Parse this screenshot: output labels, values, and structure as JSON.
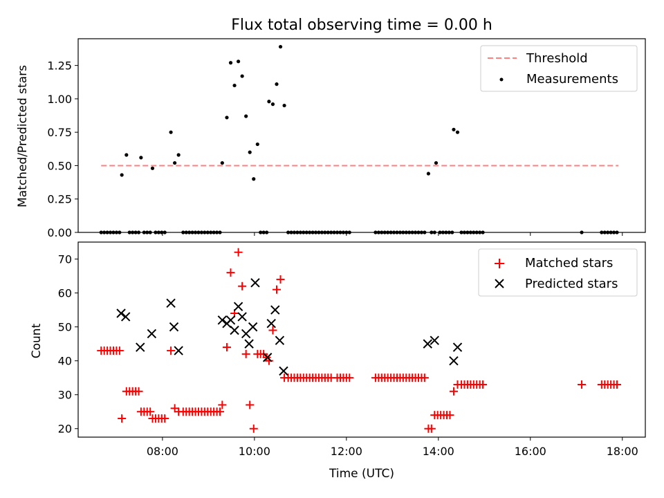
{
  "figure": {
    "title": "Flux total observing time = 0.00 h"
  },
  "chart_data": [
    {
      "type": "scatter",
      "title": "Flux total observing time = 0.00 h",
      "xlabel": "",
      "ylabel": "Matched/Predicted stars",
      "xlim": [
        "06:10",
        "18:30"
      ],
      "ylim": [
        0,
        1.45
      ],
      "xticks": [
        "08:00",
        "10:00",
        "12:00",
        "14:00",
        "16:00",
        "18:00"
      ],
      "yticks": [
        "0.00",
        "0.25",
        "0.50",
        "0.75",
        "1.00",
        "1.25"
      ],
      "legend_position": "top-right",
      "threshold": {
        "name": "Threshold",
        "color": "#ff7f7f",
        "style": "dashed",
        "y": 0.5,
        "x_range": [
          "06:40",
          "17:55"
        ]
      },
      "series": [
        {
          "name": "Measurements",
          "color": "#000000",
          "marker": "dot",
          "points": [
            [
              "06:40",
              0
            ],
            [
              "06:44",
              0
            ],
            [
              "06:48",
              0
            ],
            [
              "06:52",
              0
            ],
            [
              "06:56",
              0
            ],
            [
              "07:00",
              0
            ],
            [
              "07:04",
              0
            ],
            [
              "07:07",
              0.43
            ],
            [
              "07:13",
              0.58
            ],
            [
              "07:17",
              0
            ],
            [
              "07:21",
              0
            ],
            [
              "07:25",
              0
            ],
            [
              "07:29",
              0
            ],
            [
              "07:32",
              0.56
            ],
            [
              "07:36",
              0
            ],
            [
              "07:40",
              0
            ],
            [
              "07:44",
              0
            ],
            [
              "07:47",
              0.48
            ],
            [
              "07:51",
              0
            ],
            [
              "07:55",
              0
            ],
            [
              "07:59",
              0
            ],
            [
              "08:03",
              0
            ],
            [
              "08:11",
              0.75
            ],
            [
              "08:16",
              0.52
            ],
            [
              "08:21",
              0.58
            ],
            [
              "08:27",
              0
            ],
            [
              "08:31",
              0
            ],
            [
              "08:35",
              0
            ],
            [
              "08:39",
              0
            ],
            [
              "08:43",
              0
            ],
            [
              "08:47",
              0
            ],
            [
              "08:51",
              0
            ],
            [
              "08:55",
              0
            ],
            [
              "08:59",
              0
            ],
            [
              "09:03",
              0
            ],
            [
              "09:07",
              0
            ],
            [
              "09:11",
              0
            ],
            [
              "09:15",
              0
            ],
            [
              "09:18",
              0.52
            ],
            [
              "09:24",
              0.86
            ],
            [
              "09:29",
              1.27
            ],
            [
              "09:34",
              1.1
            ],
            [
              "09:39",
              1.28
            ],
            [
              "09:44",
              1.17
            ],
            [
              "09:49",
              0.87
            ],
            [
              "09:54",
              0.6
            ],
            [
              "09:59",
              0.4
            ],
            [
              "10:04",
              0.66
            ],
            [
              "10:08",
              0
            ],
            [
              "10:12",
              0
            ],
            [
              "10:16",
              0
            ],
            [
              "10:19",
              0.98
            ],
            [
              "10:24",
              0.96
            ],
            [
              "10:29",
              1.11
            ],
            [
              "10:34",
              1.39
            ],
            [
              "10:39",
              0.95
            ],
            [
              "10:44",
              0
            ],
            [
              "10:48",
              0
            ],
            [
              "10:52",
              0
            ],
            [
              "10:56",
              0
            ],
            [
              "11:00",
              0
            ],
            [
              "11:04",
              0
            ],
            [
              "11:08",
              0
            ],
            [
              "11:12",
              0
            ],
            [
              "11:16",
              0
            ],
            [
              "11:20",
              0
            ],
            [
              "11:24",
              0
            ],
            [
              "11:28",
              0
            ],
            [
              "11:32",
              0
            ],
            [
              "11:36",
              0
            ],
            [
              "11:40",
              0
            ],
            [
              "11:44",
              0
            ],
            [
              "11:48",
              0
            ],
            [
              "11:52",
              0
            ],
            [
              "11:56",
              0
            ],
            [
              "12:00",
              0
            ],
            [
              "12:04",
              0
            ],
            [
              "12:38",
              0
            ],
            [
              "12:42",
              0
            ],
            [
              "12:46",
              0
            ],
            [
              "12:50",
              0
            ],
            [
              "12:54",
              0
            ],
            [
              "12:58",
              0
            ],
            [
              "13:02",
              0
            ],
            [
              "13:06",
              0
            ],
            [
              "13:10",
              0
            ],
            [
              "13:14",
              0
            ],
            [
              "13:18",
              0
            ],
            [
              "13:22",
              0
            ],
            [
              "13:26",
              0
            ],
            [
              "13:30",
              0
            ],
            [
              "13:34",
              0
            ],
            [
              "13:38",
              0
            ],
            [
              "13:42",
              0
            ],
            [
              "13:47",
              0.44
            ],
            [
              "13:51",
              0
            ],
            [
              "13:55",
              0
            ],
            [
              "13:57",
              0.52
            ],
            [
              "14:02",
              0
            ],
            [
              "14:06",
              0
            ],
            [
              "14:10",
              0
            ],
            [
              "14:14",
              0
            ],
            [
              "14:18",
              0
            ],
            [
              "14:20",
              0.77
            ],
            [
              "14:25",
              0.75
            ],
            [
              "14:30",
              0
            ],
            [
              "14:34",
              0
            ],
            [
              "14:38",
              0
            ],
            [
              "14:42",
              0
            ],
            [
              "14:46",
              0
            ],
            [
              "14:50",
              0
            ],
            [
              "14:54",
              0
            ],
            [
              "14:58",
              0
            ],
            [
              "17:07",
              0
            ],
            [
              "17:33",
              0
            ],
            [
              "17:37",
              0
            ],
            [
              "17:41",
              0
            ],
            [
              "17:45",
              0
            ],
            [
              "17:49",
              0
            ],
            [
              "17:53",
              0
            ]
          ]
        }
      ]
    },
    {
      "type": "scatter",
      "title": "",
      "xlabel": "Time (UTC)",
      "ylabel": "Count",
      "xlim": [
        "06:10",
        "18:30"
      ],
      "ylim": [
        17.5,
        75
      ],
      "xticks": [
        "08:00",
        "10:00",
        "12:00",
        "14:00",
        "16:00",
        "18:00"
      ],
      "yticks": [
        "20",
        "30",
        "40",
        "50",
        "60",
        "70"
      ],
      "legend_position": "top-right",
      "series": [
        {
          "name": "Matched stars",
          "color": "#ff0000",
          "marker": "plus",
          "points": [
            [
              "06:40",
              43
            ],
            [
              "06:44",
              43
            ],
            [
              "06:48",
              43
            ],
            [
              "06:52",
              43
            ],
            [
              "06:56",
              43
            ],
            [
              "07:00",
              43
            ],
            [
              "07:04",
              43
            ],
            [
              "07:07",
              23
            ],
            [
              "07:13",
              31
            ],
            [
              "07:17",
              31
            ],
            [
              "07:21",
              31
            ],
            [
              "07:25",
              31
            ],
            [
              "07:29",
              31
            ],
            [
              "07:32",
              25
            ],
            [
              "07:36",
              25
            ],
            [
              "07:40",
              25
            ],
            [
              "07:44",
              25
            ],
            [
              "07:47",
              23
            ],
            [
              "07:51",
              23
            ],
            [
              "07:55",
              23
            ],
            [
              "07:59",
              23
            ],
            [
              "08:03",
              23
            ],
            [
              "08:11",
              43
            ],
            [
              "08:16",
              26
            ],
            [
              "08:21",
              25
            ],
            [
              "08:27",
              25
            ],
            [
              "08:31",
              25
            ],
            [
              "08:35",
              25
            ],
            [
              "08:39",
              25
            ],
            [
              "08:43",
              25
            ],
            [
              "08:47",
              25
            ],
            [
              "08:51",
              25
            ],
            [
              "08:55",
              25
            ],
            [
              "08:59",
              25
            ],
            [
              "09:03",
              25
            ],
            [
              "09:07",
              25
            ],
            [
              "09:11",
              25
            ],
            [
              "09:15",
              25
            ],
            [
              "09:18",
              27
            ],
            [
              "09:24",
              44
            ],
            [
              "09:29",
              66
            ],
            [
              "09:34",
              54
            ],
            [
              "09:39",
              72
            ],
            [
              "09:44",
              62
            ],
            [
              "09:49",
              42
            ],
            [
              "09:54",
              27
            ],
            [
              "09:59",
              20
            ],
            [
              "10:04",
              42
            ],
            [
              "10:08",
              42
            ],
            [
              "10:12",
              42
            ],
            [
              "10:16",
              41
            ],
            [
              "10:19",
              40
            ],
            [
              "10:24",
              49
            ],
            [
              "10:29",
              61
            ],
            [
              "10:34",
              64
            ],
            [
              "10:39",
              35
            ],
            [
              "10:44",
              35
            ],
            [
              "10:48",
              35
            ],
            [
              "10:52",
              35
            ],
            [
              "10:56",
              35
            ],
            [
              "11:00",
              35
            ],
            [
              "11:04",
              35
            ],
            [
              "11:08",
              35
            ],
            [
              "11:12",
              35
            ],
            [
              "11:16",
              35
            ],
            [
              "11:20",
              35
            ],
            [
              "11:24",
              35
            ],
            [
              "11:28",
              35
            ],
            [
              "11:32",
              35
            ],
            [
              "11:36",
              35
            ],
            [
              "11:40",
              35
            ],
            [
              "11:48",
              35
            ],
            [
              "11:52",
              35
            ],
            [
              "11:56",
              35
            ],
            [
              "12:00",
              35
            ],
            [
              "12:04",
              35
            ],
            [
              "12:38",
              35
            ],
            [
              "12:42",
              35
            ],
            [
              "12:46",
              35
            ],
            [
              "12:50",
              35
            ],
            [
              "12:54",
              35
            ],
            [
              "12:58",
              35
            ],
            [
              "13:02",
              35
            ],
            [
              "13:06",
              35
            ],
            [
              "13:10",
              35
            ],
            [
              "13:14",
              35
            ],
            [
              "13:18",
              35
            ],
            [
              "13:22",
              35
            ],
            [
              "13:26",
              35
            ],
            [
              "13:30",
              35
            ],
            [
              "13:34",
              35
            ],
            [
              "13:38",
              35
            ],
            [
              "13:42",
              35
            ],
            [
              "13:47",
              20
            ],
            [
              "13:51",
              20
            ],
            [
              "13:55",
              24
            ],
            [
              "13:59",
              24
            ],
            [
              "14:03",
              24
            ],
            [
              "14:07",
              24
            ],
            [
              "14:11",
              24
            ],
            [
              "14:15",
              24
            ],
            [
              "14:20",
              31
            ],
            [
              "14:25",
              33
            ],
            [
              "14:30",
              33
            ],
            [
              "14:34",
              33
            ],
            [
              "14:38",
              33
            ],
            [
              "14:42",
              33
            ],
            [
              "14:46",
              33
            ],
            [
              "14:50",
              33
            ],
            [
              "14:54",
              33
            ],
            [
              "14:58",
              33
            ],
            [
              "17:07",
              33
            ],
            [
              "17:33",
              33
            ],
            [
              "17:37",
              33
            ],
            [
              "17:41",
              33
            ],
            [
              "17:45",
              33
            ],
            [
              "17:49",
              33
            ],
            [
              "17:53",
              33
            ]
          ]
        },
        {
          "name": "Predicted stars",
          "color": "#000000",
          "marker": "x",
          "points": [
            [
              "07:06",
              54
            ],
            [
              "07:12",
              53
            ],
            [
              "07:31",
              44
            ],
            [
              "07:46",
              48
            ],
            [
              "08:11",
              57
            ],
            [
              "08:15",
              50
            ],
            [
              "08:21",
              43
            ],
            [
              "09:18",
              52
            ],
            [
              "09:24",
              51
            ],
            [
              "09:29",
              52
            ],
            [
              "09:34",
              49
            ],
            [
              "09:39",
              56
            ],
            [
              "09:44",
              53
            ],
            [
              "09:49",
              48
            ],
            [
              "09:53",
              45
            ],
            [
              "09:58",
              50
            ],
            [
              "10:01",
              63
            ],
            [
              "10:17",
              41
            ],
            [
              "10:22",
              51
            ],
            [
              "10:27",
              55
            ],
            [
              "10:33",
              46
            ],
            [
              "10:38",
              37
            ],
            [
              "13:46",
              45
            ],
            [
              "13:55",
              46
            ],
            [
              "14:20",
              40
            ],
            [
              "14:25",
              44
            ]
          ]
        }
      ]
    }
  ]
}
